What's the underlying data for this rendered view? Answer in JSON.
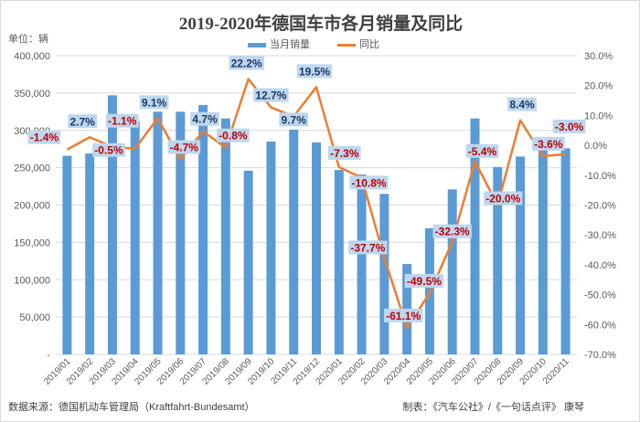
{
  "chart_data": {
    "type": "bar+line",
    "title": "2019-2020年德国车市各月销量及同比",
    "unit_label": "单位：辆",
    "categories": [
      "2019/01",
      "2019/02",
      "2019/03",
      "2019/04",
      "2019/05",
      "2019/06",
      "2019/07",
      "2019/08",
      "2019/09",
      "2019/10",
      "2019/11",
      "2019/12",
      "2020/01",
      "2020/02",
      "2020/03",
      "2020/04",
      "2020/05",
      "2020/06",
      "2020/07",
      "2020/08",
      "2020/09",
      "2020/10",
      "2020/11"
    ],
    "series": [
      {
        "name": "当月销量",
        "type": "bar",
        "axis": "left",
        "color": "#5b9bd5",
        "values": [
          266000,
          269000,
          347000,
          312000,
          325000,
          325000,
          334000,
          316000,
          246000,
          285000,
          301000,
          284000,
          247000,
          241000,
          215000,
          121000,
          169000,
          221000,
          316000,
          251000,
          265000,
          278000,
          276000
        ]
      },
      {
        "name": "同比",
        "type": "line",
        "axis": "right",
        "color": "#ed7d31",
        "values": [
          -1.4,
          2.7,
          -0.5,
          -1.1,
          9.1,
          -4.7,
          4.7,
          -0.8,
          22.2,
          12.7,
          9.7,
          19.5,
          -7.3,
          -10.8,
          -37.7,
          -61.1,
          -49.5,
          -32.3,
          -5.4,
          -20.0,
          8.4,
          -3.6,
          -3.0
        ],
        "labels": [
          "-1.4%",
          "2.7%",
          "-0.5%",
          "-1.1%",
          "9.1%",
          "-4.7%",
          "4.7%",
          "-0.8%",
          "22.2%",
          "12.7%",
          "9.7%",
          "19.5%",
          "-7.3%",
          "-10.8%",
          "-37.7%",
          "-61.1%",
          "-49.5%",
          "-32.3%",
          "-5.4%",
          "-20.0%",
          "8.4%",
          "-3.6%",
          "-3.0%"
        ]
      }
    ],
    "left_axis": {
      "ylim": [
        0,
        400000
      ],
      "ticks": [
        "-",
        "50,000",
        "100,000",
        "150,000",
        "200,000",
        "250,000",
        "300,000",
        "350,000",
        "400,000"
      ]
    },
    "right_axis": {
      "ylim": [
        -70,
        30
      ],
      "ticks": [
        "-70.0%",
        "-60.0%",
        "-50.0%",
        "-40.0%",
        "-30.0%",
        "-20.0%",
        "-10.0%",
        "0.0%",
        "10.0%",
        "20.0%",
        "30.0%"
      ]
    },
    "grid": true,
    "legend": "top-center",
    "label_colors": {
      "positive": "#1f3864",
      "negative": "#c00000",
      "background": "#bdd7ee"
    }
  },
  "footer": {
    "source": "数据来源：德国机动车管理局（Kraftfahrt-Bundesamt）",
    "credit": "制表：《汽车公社》/《一句话点评》 康琴"
  }
}
